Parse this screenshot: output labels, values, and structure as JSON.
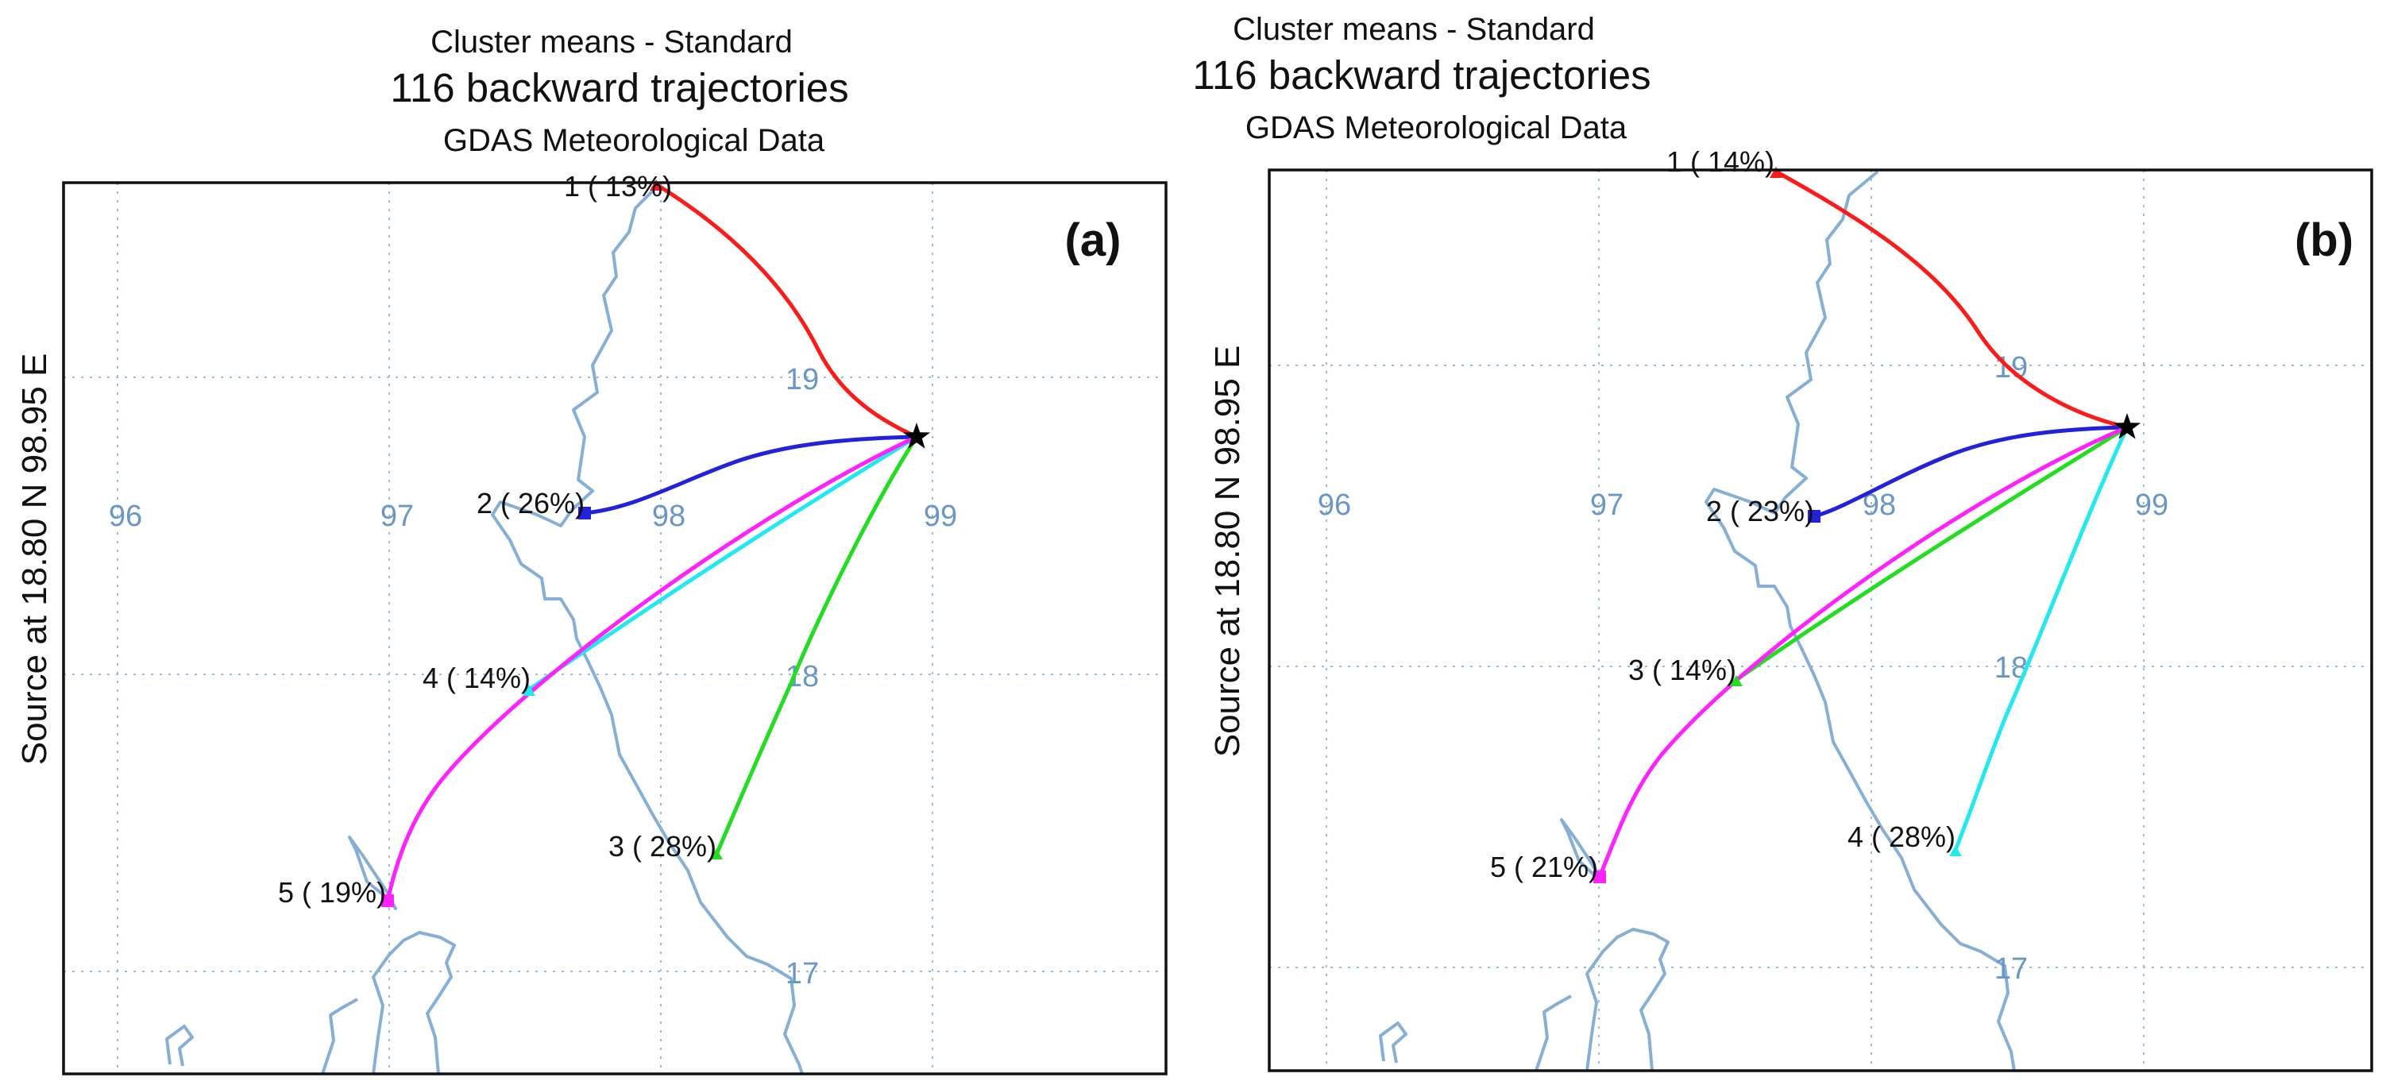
{
  "panels": [
    {
      "id": "a",
      "label": "(a)",
      "title_line1": "Cluster means - Standard",
      "title_line2": "116 backward trajectories",
      "title_line3": "GDAS Meteorological Data",
      "y_axis_label": "Source    at    18.80 N    98.95 E",
      "lon_ticks": [
        "96",
        "97",
        "98",
        "99"
      ],
      "lat_ticks": [
        "19",
        "18",
        "17"
      ],
      "source": {
        "lat": 18.8,
        "lon": 98.95
      },
      "clusters": [
        {
          "id": 1,
          "label": "1 ( 13%)",
          "percent": 13,
          "color": "#ff1a1a"
        },
        {
          "id": 2,
          "label": "2 ( 26%)",
          "percent": 26,
          "color": "#2222dd"
        },
        {
          "id": 3,
          "label": "3 ( 28%)",
          "percent": 28,
          "color": "#22dd22"
        },
        {
          "id": 4,
          "label": "4 ( 14%)",
          "percent": 14,
          "color": "#22e8f0"
        },
        {
          "id": 5,
          "label": "5 ( 19%)",
          "percent": 19,
          "color": "#ff22ff"
        }
      ]
    },
    {
      "id": "b",
      "label": "(b)",
      "title_line1": "Cluster means - Standard",
      "title_line2": "116 backward trajectories",
      "title_line3": "GDAS Meteorological Data",
      "y_axis_label": "Source    at    18.80 N    98.95 E",
      "lon_ticks": [
        "96",
        "97",
        "98",
        "99"
      ],
      "lat_ticks": [
        "19",
        "18",
        "17"
      ],
      "source": {
        "lat": 18.8,
        "lon": 98.95
      },
      "clusters": [
        {
          "id": 1,
          "label": "1 ( 14%)",
          "percent": 14,
          "color": "#ff1a1a"
        },
        {
          "id": 2,
          "label": "2 ( 23%)",
          "percent": 23,
          "color": "#2222dd"
        },
        {
          "id": 3,
          "label": "3 ( 14%)",
          "percent": 14,
          "color": "#22dd22"
        },
        {
          "id": 4,
          "label": "4 ( 28%)",
          "percent": 28,
          "color": "#22e8f0"
        },
        {
          "id": 5,
          "label": "5 ( 21%)",
          "percent": 21,
          "color": "#ff22ff"
        }
      ]
    }
  ]
}
